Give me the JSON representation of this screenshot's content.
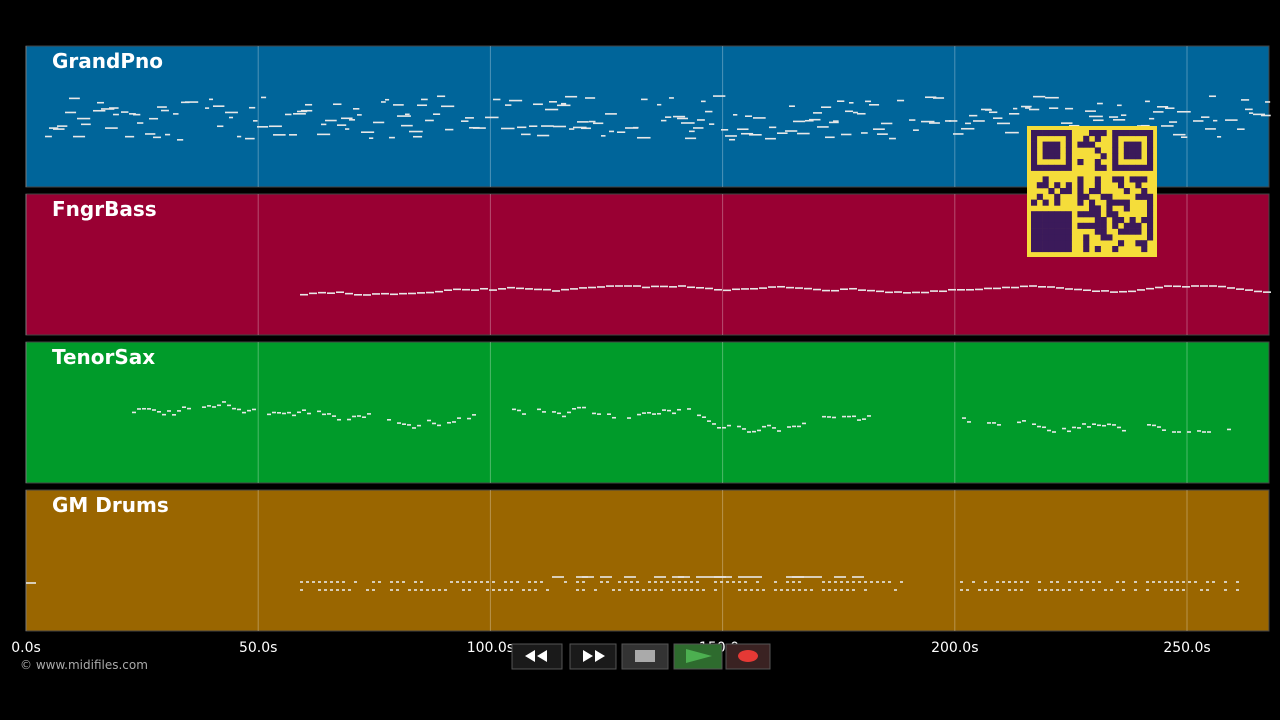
{
  "tracks": [
    {
      "name": "GrandPno",
      "color": "#00659a"
    },
    {
      "name": "FngrBass",
      "color": "#990033"
    },
    {
      "name": "TenorSax",
      "color": "#009b2a"
    },
    {
      "name": "GM Drums",
      "color": "#9a6600"
    }
  ],
  "timeline": {
    "ticks": [
      {
        "value": 0,
        "label": "0.0s"
      },
      {
        "value": 50,
        "label": "50.0s"
      },
      {
        "value": 100,
        "label": "100.0s"
      },
      {
        "value": 150,
        "label": "150.0s"
      },
      {
        "value": 200,
        "label": "200.0s"
      },
      {
        "value": 250,
        "label": "250.0s"
      }
    ]
  },
  "footer": {
    "credit": "© www.midifiles.com"
  }
}
